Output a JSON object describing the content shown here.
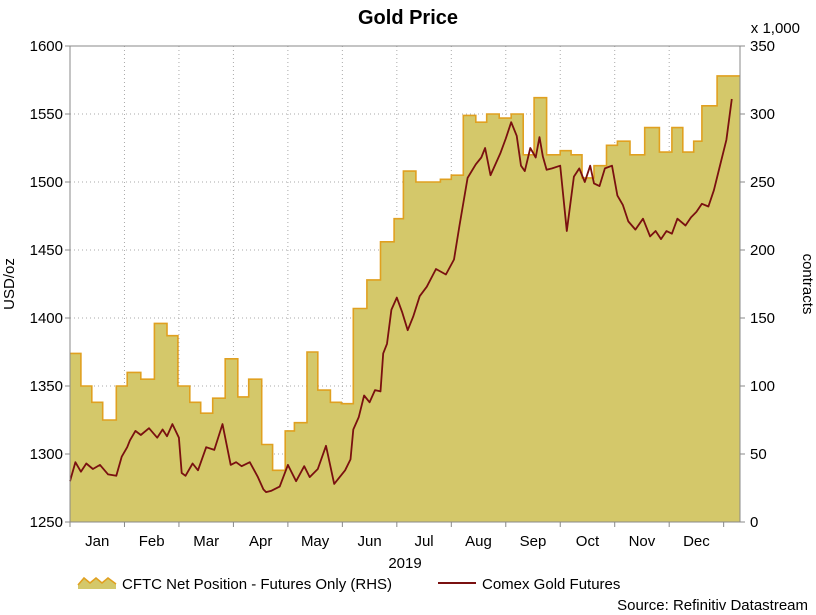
{
  "chart_data": {
    "type": "line",
    "title": "Gold Price",
    "xlabel": "2019",
    "ylabel_left": "USD/oz",
    "ylabel_right": "contracts",
    "right_multiplier_label": "x 1,000",
    "source": "Source: Refinitiv Datastream",
    "ylim_left": [
      1250,
      1600
    ],
    "ylim_right": [
      0,
      350
    ],
    "x_range": [
      0,
      12.3
    ],
    "yticks_left": [
      "1250",
      "1300",
      "1350",
      "1400",
      "1450",
      "1500",
      "1550",
      "1600"
    ],
    "yticks_right": [
      "0",
      "50",
      "100",
      "150",
      "200",
      "250",
      "300",
      "350"
    ],
    "xticks": [
      "Jan",
      "Feb",
      "Mar",
      "Apr",
      "May",
      "Jun",
      "Jul",
      "Aug",
      "Sep",
      "Oct",
      "Nov",
      "Dec"
    ],
    "grid": true,
    "legend_position": "bottom",
    "series": [
      {
        "name": "CFTC Net Position - Futures Only (RHS)",
        "kind": "step-area",
        "axis": "right",
        "color": "#d4c86a",
        "edge_color": "#e0a020",
        "x": [
          0.0,
          0.2,
          0.4,
          0.6,
          0.85,
          1.05,
          1.3,
          1.55,
          1.78,
          1.98,
          2.2,
          2.4,
          2.62,
          2.85,
          3.08,
          3.28,
          3.52,
          3.72,
          3.95,
          4.12,
          4.35,
          4.55,
          4.78,
          4.98,
          5.2,
          5.45,
          5.7,
          5.95,
          6.12,
          6.35,
          6.58,
          6.8,
          7.0,
          7.22,
          7.45,
          7.65,
          7.88,
          8.1,
          8.32,
          8.52,
          8.75,
          9.0,
          9.2,
          9.4,
          9.62,
          9.85,
          10.05,
          10.28,
          10.55,
          10.82,
          11.05,
          11.25,
          11.45,
          11.6,
          11.88,
          12.05,
          12.3
        ],
        "values": [
          124,
          100,
          88,
          75,
          100,
          110,
          105,
          146,
          137,
          100,
          88,
          80,
          91,
          120,
          92,
          105,
          57,
          38,
          67,
          73,
          125,
          97,
          88,
          87,
          157,
          178,
          206,
          223,
          258,
          250,
          250,
          252,
          255,
          299,
          294,
          300,
          297,
          300,
          270,
          312,
          270,
          273,
          270,
          253,
          262,
          277,
          280,
          270,
          290,
          272,
          290,
          272,
          280,
          306,
          328,
          328,
          328
        ]
      },
      {
        "name": "Comex Gold Futures",
        "kind": "line",
        "axis": "left",
        "color": "#7a1010",
        "x": [
          0.0,
          0.1,
          0.2,
          0.3,
          0.42,
          0.55,
          0.7,
          0.85,
          0.95,
          1.05,
          1.1,
          1.2,
          1.3,
          1.45,
          1.6,
          1.7,
          1.78,
          1.88,
          2.0,
          2.05,
          2.12,
          2.25,
          2.35,
          2.5,
          2.65,
          2.8,
          2.95,
          3.05,
          3.15,
          3.3,
          3.45,
          3.55,
          3.6,
          3.7,
          3.85,
          4.0,
          4.15,
          4.3,
          4.4,
          4.55,
          4.7,
          4.85,
          5.05,
          5.15,
          5.2,
          5.3,
          5.4,
          5.5,
          5.6,
          5.7,
          5.75,
          5.82,
          5.9,
          6.0,
          6.1,
          6.2,
          6.3,
          6.42,
          6.55,
          6.72,
          6.9,
          7.05,
          7.15,
          7.3,
          7.45,
          7.55,
          7.62,
          7.72,
          7.82,
          7.9,
          8.0,
          8.1,
          8.2,
          8.28,
          8.35,
          8.45,
          8.55,
          8.62,
          8.68,
          8.75,
          8.85,
          9.0,
          9.12,
          9.25,
          9.35,
          9.45,
          9.55,
          9.62,
          9.72,
          9.82,
          9.95,
          10.05,
          10.15,
          10.25,
          10.38,
          10.52,
          10.65,
          10.75,
          10.85,
          10.95,
          11.05,
          11.15,
          11.3,
          11.4,
          11.5,
          11.6,
          11.72,
          11.82,
          11.92,
          12.0,
          12.05,
          12.15
        ],
        "values": [
          1280,
          1294,
          1287,
          1293,
          1289,
          1292,
          1285,
          1284,
          1298,
          1305,
          1310,
          1317,
          1314,
          1319,
          1312,
          1318,
          1313,
          1322,
          1312,
          1286,
          1284,
          1293,
          1288,
          1305,
          1303,
          1322,
          1292,
          1294,
          1291,
          1294,
          1283,
          1274,
          1272,
          1273,
          1276,
          1292,
          1280,
          1291,
          1283,
          1289,
          1306,
          1278,
          1288,
          1296,
          1318,
          1327,
          1343,
          1338,
          1347,
          1346,
          1374,
          1381,
          1406,
          1415,
          1404,
          1391,
          1401,
          1416,
          1423,
          1436,
          1432,
          1443,
          1468,
          1503,
          1513,
          1518,
          1525,
          1505,
          1514,
          1521,
          1532,
          1544,
          1534,
          1512,
          1508,
          1525,
          1518,
          1533,
          1519,
          1509,
          1510,
          1512,
          1464,
          1504,
          1510,
          1500,
          1512,
          1499,
          1497,
          1510,
          1512,
          1490,
          1483,
          1471,
          1465,
          1473,
          1460,
          1464,
          1458,
          1464,
          1462,
          1473,
          1468,
          1474,
          1478,
          1484,
          1482,
          1494,
          1510,
          1523,
          1531,
          1561
        ]
      }
    ]
  }
}
